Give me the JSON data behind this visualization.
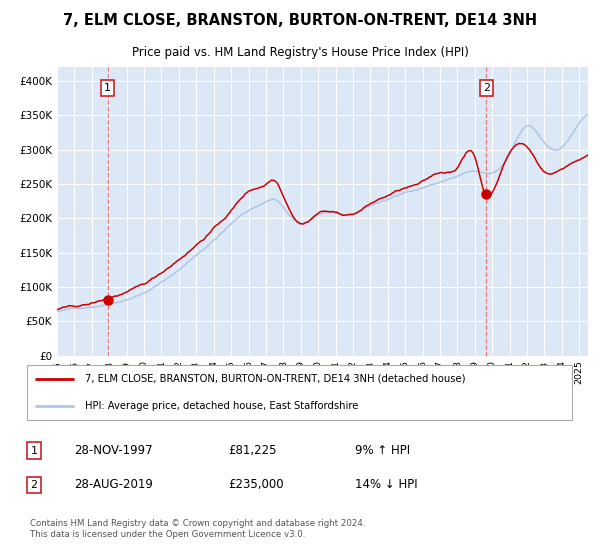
{
  "title": "7, ELM CLOSE, BRANSTON, BURTON-ON-TRENT, DE14 3NH",
  "subtitle": "Price paid vs. HM Land Registry's House Price Index (HPI)",
  "legend_line1": "7, ELM CLOSE, BRANSTON, BURTON-ON-TRENT, DE14 3NH (detached house)",
  "legend_line2": "HPI: Average price, detached house, East Staffordshire",
  "annotation1_date": "28-NOV-1997",
  "annotation1_price": "£81,225",
  "annotation1_hpi": "9% ↑ HPI",
  "annotation2_date": "28-AUG-2019",
  "annotation2_price": "£235,000",
  "annotation2_hpi": "14% ↓ HPI",
  "footer": "Contains HM Land Registry data © Crown copyright and database right 2024.\nThis data is licensed under the Open Government Licence v3.0.",
  "hpi_color": "#aec6e8",
  "price_color": "#cc0000",
  "marker_color": "#cc0000",
  "vline_color": "#ee7777",
  "plot_bg": "#dce8f5",
  "grid_color": "#ffffff",
  "ylim": [
    0,
    420000
  ],
  "yticks": [
    0,
    50000,
    100000,
    150000,
    200000,
    250000,
    300000,
    350000,
    400000
  ],
  "ytick_labels": [
    "£0",
    "£50K",
    "£100K",
    "£150K",
    "£200K",
    "£250K",
    "£300K",
    "£350K",
    "£400K"
  ],
  "sale1_x": 1997.91,
  "sale1_y": 81225,
  "sale2_x": 2019.66,
  "sale2_y": 235000,
  "xmin": 1995.0,
  "xmax": 2025.5,
  "hpi_anchors_x": [
    1994.5,
    1995,
    1996,
    1997,
    1998,
    1999,
    2000,
    2001,
    2002,
    2003,
    2004,
    2005,
    2006,
    2007,
    2007.5,
    2008,
    2009,
    2010,
    2011,
    2012,
    2013,
    2014,
    2015,
    2016,
    2017,
    2018,
    2019,
    2020,
    2021,
    2022,
    2023,
    2024,
    2025,
    2026
  ],
  "hpi_anchors_y": [
    62000,
    64000,
    68000,
    72000,
    77000,
    85000,
    95000,
    110000,
    128000,
    150000,
    172000,
    195000,
    215000,
    228000,
    232000,
    220000,
    196000,
    207000,
    210000,
    208000,
    218000,
    228000,
    238000,
    244000,
    254000,
    263000,
    270000,
    267000,
    293000,
    333000,
    308000,
    303000,
    338000,
    345000
  ],
  "price_anchors_x": [
    1994.5,
    1995,
    1996,
    1997,
    1997.91,
    1998,
    1999,
    2000,
    2001,
    2002,
    2003,
    2004,
    2005,
    2006,
    2007,
    2007.5,
    2008,
    2009,
    2010,
    2011,
    2012,
    2013,
    2014,
    2015,
    2016,
    2017,
    2018,
    2019,
    2019.66,
    2020,
    2021,
    2022,
    2023,
    2024,
    2025,
    2026
  ],
  "price_anchors_y": [
    65000,
    67000,
    70000,
    74000,
    81225,
    82000,
    90000,
    100000,
    117000,
    138000,
    160000,
    184000,
    210000,
    238000,
    250000,
    256000,
    235000,
    197000,
    213000,
    213000,
    212000,
    226000,
    238000,
    248000,
    255000,
    268000,
    278000,
    292000,
    235000,
    242000,
    300000,
    308000,
    273000,
    277000,
    292000,
    298000
  ]
}
